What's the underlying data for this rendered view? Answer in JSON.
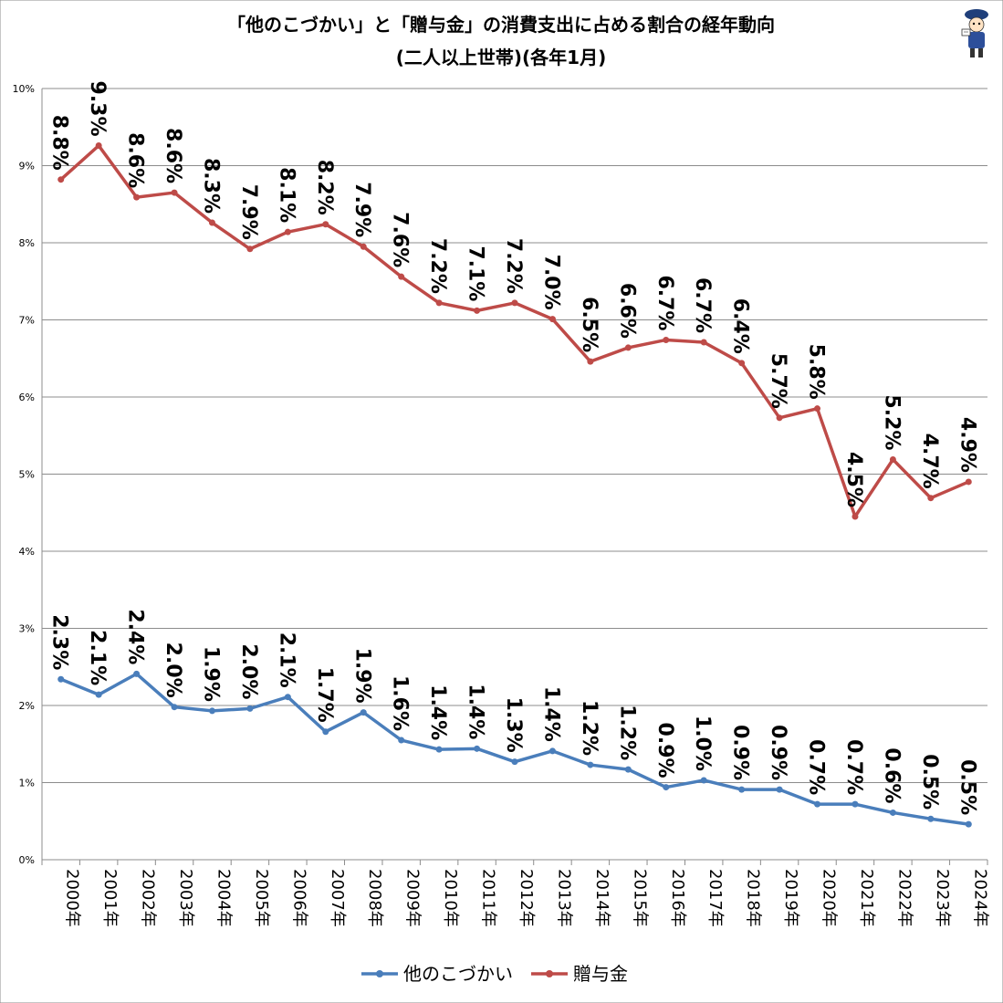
{
  "chart_data": {
    "type": "line",
    "title": "「他のこづかい」と「贈与金」の消費支出に占める割合の経年動向",
    "subtitle": "(二人以上世帯)(各年1月)",
    "xlabel": "",
    "ylabel": "",
    "ylim": [
      0,
      10
    ],
    "y_unit": "%",
    "y_ticks": [
      "0%",
      "1%",
      "2%",
      "3%",
      "4%",
      "5%",
      "6%",
      "7%",
      "8%",
      "9%",
      "10%"
    ],
    "grid": true,
    "legend_position": "bottom",
    "categories": [
      "2000年",
      "2001年",
      "2002年",
      "2003年",
      "2004年",
      "2005年",
      "2006年",
      "2007年",
      "2008年",
      "2009年",
      "2010年",
      "2011年",
      "2012年",
      "2013年",
      "2014年",
      "2015年",
      "2016年",
      "2017年",
      "2018年",
      "2019年",
      "2020年",
      "2021年",
      "2022年",
      "2023年",
      "2024年"
    ],
    "series": [
      {
        "name": "他のこづかい",
        "color": "#4a7ebb",
        "values": [
          2.34,
          2.14,
          2.41,
          1.98,
          1.93,
          1.96,
          2.11,
          1.66,
          1.91,
          1.55,
          1.43,
          1.44,
          1.27,
          1.41,
          1.23,
          1.17,
          0.94,
          1.03,
          0.91,
          0.91,
          0.72,
          0.72,
          0.61,
          0.53,
          0.46
        ],
        "labels": [
          "2.3%",
          "2.1%",
          "2.4%",
          "2.0%",
          "1.9%",
          "2.0%",
          "2.1%",
          "1.7%",
          "1.9%",
          "1.6%",
          "1.4%",
          "1.4%",
          "1.3%",
          "1.4%",
          "1.2%",
          "1.2%",
          "0.9%",
          "1.0%",
          "0.9%",
          "0.9%",
          "0.7%",
          "0.7%",
          "0.6%",
          "0.5%",
          "0.5%"
        ]
      },
      {
        "name": "贈与金",
        "color": "#be4b48",
        "values": [
          8.82,
          9.26,
          8.59,
          8.65,
          8.26,
          7.92,
          8.14,
          8.24,
          7.95,
          7.56,
          7.22,
          7.12,
          7.22,
          7.01,
          6.46,
          6.64,
          6.74,
          6.71,
          6.44,
          5.73,
          5.85,
          4.45,
          5.19,
          4.69,
          4.9
        ],
        "labels": [
          "8.8%",
          "9.3%",
          "8.6%",
          "8.6%",
          "8.3%",
          "7.9%",
          "8.1%",
          "8.2%",
          "7.9%",
          "7.6%",
          "7.2%",
          "7.1%",
          "7.2%",
          "7.0%",
          "6.5%",
          "6.6%",
          "6.7%",
          "6.7%",
          "6.4%",
          "5.7%",
          "5.8%",
          "4.5%",
          "5.2%",
          "4.7%",
          "4.9%"
        ]
      }
    ],
    "mascot_icon": "mascot-character-icon"
  }
}
